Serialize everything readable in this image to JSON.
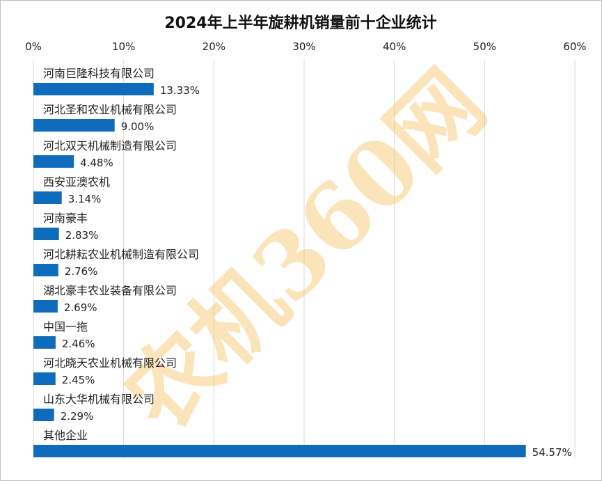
{
  "watermark": "农机360网",
  "chart_data": {
    "type": "bar",
    "orientation": "horizontal",
    "title": "2024年上半年旋耕机销量前十企业统计",
    "xlim": [
      0,
      60
    ],
    "xticks": [
      "0%",
      "10%",
      "20%",
      "30%",
      "40%",
      "50%",
      "60%"
    ],
    "grid": true,
    "legend": "none",
    "bar_color": "#0f6cbd",
    "categories": [
      "河南巨隆科技有限公司",
      "河北圣和农业机械有限公司",
      "河北双天机械制造有限公司",
      "西安亚澳农机",
      "河南豪丰",
      "河北耕耘农业机械制造有限公司",
      "湖北豪丰农业装备有限公司",
      "中国一拖",
      "河北晓天农业机械有限公司",
      "山东大华机械有限公司",
      "其他企业"
    ],
    "values": [
      13.33,
      9.0,
      4.48,
      3.14,
      2.83,
      2.76,
      2.69,
      2.46,
      2.45,
      2.29,
      54.57
    ],
    "labels": [
      "13.33%",
      "9.00%",
      "4.48%",
      "3.14%",
      "2.83%",
      "2.76%",
      "2.69%",
      "2.46%",
      "2.45%",
      "2.29%",
      "54.57%"
    ]
  }
}
